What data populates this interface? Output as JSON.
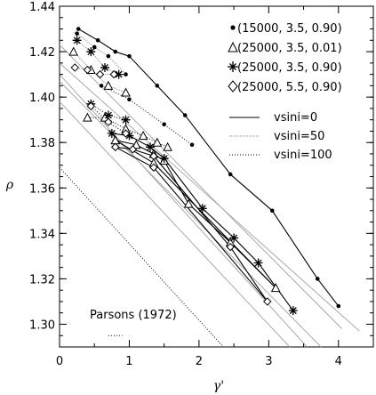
{
  "chart_data": {
    "type": "line",
    "xlabel": "γ'",
    "ylabel": "ρ",
    "xlim": [
      0,
      4.5
    ],
    "ylim": [
      1.29,
      1.44
    ],
    "xticks": [
      0,
      1,
      2,
      3,
      4
    ],
    "yticks": [
      1.3,
      1.32,
      1.34,
      1.36,
      1.38,
      1.4,
      1.42,
      1.44
    ],
    "x_tick_labels": [
      "0",
      "1",
      "2",
      "3",
      "4"
    ],
    "y_tick_labels": [
      "1.30",
      "1.32",
      "1.34",
      "1.36",
      "1.38",
      "1.40",
      "1.42",
      "1.44"
    ],
    "marker_legend": [
      {
        "marker": "dot",
        "label": "(15000,  3.5,  0.90)"
      },
      {
        "marker": "triangle",
        "label": "(25000,  3.5,  0.01)"
      },
      {
        "marker": "star",
        "label": "(25000,  3.5,  0.90)"
      },
      {
        "marker": "diamond",
        "label": "(25000,  5.5,  0.90)"
      }
    ],
    "line_legend": [
      {
        "style": "solid",
        "label": "vsini=0"
      },
      {
        "style": "dotted",
        "label": "vsini=50"
      },
      {
        "style": "dashdot",
        "label": "vsini=100"
      }
    ],
    "annotation": "Parsons (1972)",
    "series": [
      {
        "marker": "dot",
        "line": "solid",
        "x": [
          0.27,
          0.55,
          0.8,
          1.0,
          1.4,
          1.8,
          2.45,
          3.05,
          3.7,
          4.0
        ],
        "y": [
          1.43,
          1.425,
          1.42,
          1.418,
          1.405,
          1.392,
          1.366,
          1.35,
          1.32,
          1.308
        ]
      },
      {
        "marker": "dot",
        "line": "dotted",
        "x": [
          0.25,
          0.5,
          0.7,
          0.95
        ],
        "y": [
          1.428,
          1.422,
          1.418,
          1.41
        ]
      },
      {
        "marker": "dot",
        "line": "dashdot",
        "x": [
          0.6,
          1.0,
          1.5,
          1.9
        ],
        "y": [
          1.405,
          1.399,
          1.388,
          1.379
        ]
      },
      {
        "marker": "triangle",
        "line": "solid",
        "x": [
          0.8,
          1.1,
          1.35,
          1.5,
          1.85,
          2.45,
          3.1,
          1.35,
          0.8
        ],
        "y": [
          1.381,
          1.379,
          1.375,
          1.372,
          1.353,
          1.336,
          1.316,
          1.371,
          1.381
        ]
      },
      {
        "marker": "triangle",
        "line": "dotted",
        "x": [
          0.2,
          0.45,
          0.7,
          0.95
        ],
        "y": [
          1.42,
          1.412,
          1.405,
          1.402
        ]
      },
      {
        "marker": "triangle",
        "line": "dashdot",
        "x": [
          0.4,
          0.65,
          0.95,
          1.2,
          1.4,
          1.55
        ],
        "y": [
          1.391,
          1.391,
          1.386,
          1.383,
          1.38,
          1.378
        ]
      },
      {
        "marker": "star",
        "line": "solid",
        "x": [
          0.75,
          1.0,
          1.3,
          1.5,
          2.05,
          2.5,
          2.85,
          3.35
        ],
        "y": [
          1.384,
          1.383,
          1.378,
          1.373,
          1.351,
          1.338,
          1.327,
          1.306
        ]
      },
      {
        "marker": "star",
        "line": "dotted",
        "x": [
          0.25,
          0.45,
          0.65,
          0.85
        ],
        "y": [
          1.425,
          1.42,
          1.413,
          1.41
        ]
      },
      {
        "marker": "star",
        "line": "dashdot",
        "x": [
          0.45,
          0.7,
          0.95
        ],
        "y": [
          1.397,
          1.392,
          1.39
        ]
      },
      {
        "marker": "diamond",
        "line": "solid",
        "x": [
          0.8,
          1.05,
          1.35,
          2.45,
          2.98,
          1.35,
          0.8
        ],
        "y": [
          1.378,
          1.377,
          1.374,
          1.334,
          1.31,
          1.369,
          1.378
        ]
      },
      {
        "marker": "diamond",
        "line": "dotted",
        "x": [
          0.22,
          0.4,
          0.58,
          0.78
        ],
        "y": [
          1.413,
          1.412,
          1.41,
          1.41
        ]
      },
      {
        "marker": "diamond",
        "line": "dashdot",
        "x": [
          0.45,
          0.7,
          0.95
        ],
        "y": [
          1.396,
          1.389,
          1.384
        ]
      }
    ],
    "reference_lines": [
      {
        "style": "gray",
        "x": [
          0,
          4.05
        ],
        "y": [
          1.423,
          1.298
        ]
      },
      {
        "style": "gray",
        "x": [
          0,
          4.3
        ],
        "y": [
          1.415,
          1.297
        ]
      },
      {
        "style": "gray",
        "x": [
          0,
          3.55
        ],
        "y": [
          1.41,
          1.29
        ]
      },
      {
        "style": "gray",
        "x": [
          0,
          3.75
        ],
        "y": [
          1.407,
          1.29
        ]
      },
      {
        "style": "gray",
        "x": [
          0,
          3.3
        ],
        "y": [
          1.398,
          1.29
        ]
      },
      {
        "style": "dashdot",
        "x": [
          0,
          2.35
        ],
        "y": [
          1.369,
          1.29
        ]
      },
      {
        "style": "dashdot",
        "x": [
          0.7,
          0.9
        ],
        "y": [
          1.295,
          1.295
        ]
      }
    ]
  }
}
